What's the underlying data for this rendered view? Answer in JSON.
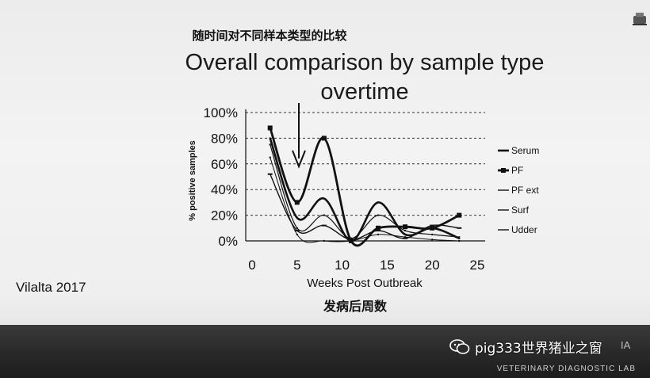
{
  "slide": {
    "chinese_title": "随时间对不同样本类型的比较",
    "title_line1": "Overall comparison by sample type",
    "title_line2": "overtime",
    "author": "Vilalta 2017"
  },
  "footer": {
    "lab_text": "VETERINARY DIAGNOSTIC LAB",
    "partial_text": "IA",
    "watermark_text": "pig333世界猪业之窗",
    "watermark_icon": "wechat-icon"
  },
  "chart_data": {
    "type": "line",
    "ylabel": "% positive samples",
    "xlabel": "Weeks Post Outbreak",
    "xlabel_cn": "发病后周数",
    "xlim": [
      0,
      25
    ],
    "ylim": [
      0,
      100
    ],
    "x_ticks": [
      "0",
      "5",
      "10",
      "15",
      "20",
      "25"
    ],
    "y_ticks": [
      "0%",
      "20%",
      "40%",
      "60%",
      "80%",
      "100%"
    ],
    "grid": "horizontal dashed",
    "legend_position": "right",
    "annotation": "downward arrow at week 5",
    "series": [
      {
        "name": "Serum",
        "x": [
          2,
          5,
          8,
          11,
          14,
          17,
          20,
          23
        ],
        "y": [
          80,
          18,
          33,
          0,
          30,
          5,
          10,
          2
        ]
      },
      {
        "name": "PF",
        "x": [
          2,
          5,
          8,
          11,
          14,
          17,
          20,
          23
        ],
        "y": [
          88,
          30,
          80,
          0,
          10,
          11,
          10,
          20
        ]
      },
      {
        "name": "PF ext",
        "x": [
          2,
          5,
          8,
          11,
          14,
          17,
          20,
          23
        ],
        "y": [
          75,
          10,
          20,
          2,
          20,
          8,
          5,
          3
        ]
      },
      {
        "name": "Surf",
        "x": [
          2,
          5,
          8,
          11,
          14,
          17,
          20,
          23
        ],
        "y": [
          52,
          8,
          12,
          1,
          8,
          2,
          12,
          10
        ]
      },
      {
        "name": "Udder",
        "x": [
          2,
          5,
          8,
          11,
          14,
          17,
          20,
          23
        ],
        "y": [
          65,
          5,
          0,
          0,
          5,
          3,
          1,
          0
        ]
      }
    ]
  }
}
